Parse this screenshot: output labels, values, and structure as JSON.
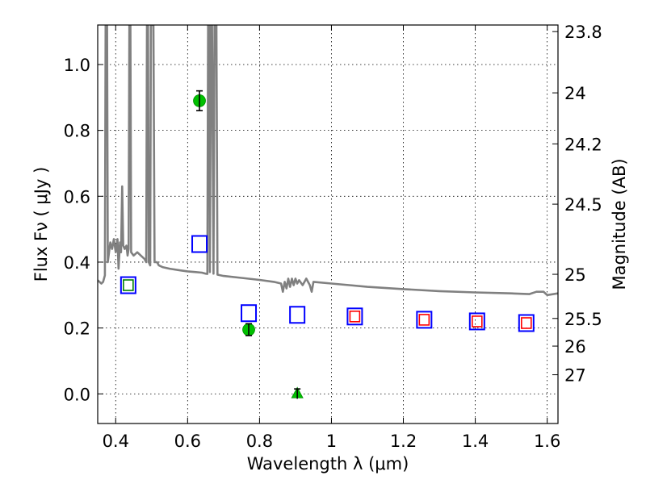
{
  "chart_data": {
    "type": "scatter",
    "xlabel": "Wavelength  λ (μm)",
    "ylabel": "Flux  Fν  ( μJy )",
    "ylabel_right": "Magnitude (AB)",
    "xlim": [
      0.35,
      1.63
    ],
    "ylim": [
      -0.09,
      1.12
    ],
    "grid": true,
    "x_ticks": [
      0.4,
      0.6,
      0.8,
      1.0,
      1.2,
      1.4,
      1.6
    ],
    "x_tick_labels": [
      "0.4",
      "0.6",
      "0.8",
      "1",
      "1.2",
      "1.4",
      "1.6"
    ],
    "y_ticks": [
      0.0,
      0.2,
      0.4,
      0.6,
      0.8,
      1.0
    ],
    "y_tick_labels": [
      "0.0",
      "0.2",
      "0.4",
      "0.6",
      "0.8",
      "1.0"
    ],
    "right_ticks": [
      {
        "label": "23.8",
        "flux": 1.1
      },
      {
        "label": "24",
        "flux": 0.914
      },
      {
        "label": "24.2",
        "flux": 0.759
      },
      {
        "label": "24.5",
        "flux": 0.576
      },
      {
        "label": "25",
        "flux": 0.363
      },
      {
        "label": "25.5",
        "flux": 0.229
      },
      {
        "label": "26",
        "flux": 0.145
      },
      {
        "label": "27",
        "flux": 0.058
      }
    ],
    "series": [
      {
        "role": "model-sed",
        "style": "line",
        "color": "#808080",
        "points": [
          [
            0.35,
            0.345
          ],
          [
            0.36,
            0.335
          ],
          [
            0.365,
            0.34
          ],
          [
            0.37,
            0.36
          ],
          [
            0.372,
            1.12
          ],
          [
            0.376,
            1.12
          ],
          [
            0.378,
            0.4
          ],
          [
            0.385,
            0.46
          ],
          [
            0.39,
            0.44
          ],
          [
            0.395,
            0.47
          ],
          [
            0.4,
            0.43
          ],
          [
            0.405,
            0.47
          ],
          [
            0.408,
            0.38
          ],
          [
            0.412,
            0.46
          ],
          [
            0.415,
            0.43
          ],
          [
            0.418,
            0.63
          ],
          [
            0.421,
            0.45
          ],
          [
            0.425,
            0.44
          ],
          [
            0.43,
            0.45
          ],
          [
            0.433,
            0.42
          ],
          [
            0.436,
            0.44
          ],
          [
            0.438,
            1.12
          ],
          [
            0.441,
            1.12
          ],
          [
            0.443,
            0.43
          ],
          [
            0.45,
            0.42
          ],
          [
            0.46,
            0.43
          ],
          [
            0.47,
            0.42
          ],
          [
            0.48,
            0.41
          ],
          [
            0.485,
            0.4
          ],
          [
            0.487,
            1.12
          ],
          [
            0.49,
            1.12
          ],
          [
            0.492,
            0.4
          ],
          [
            0.496,
            0.39
          ],
          [
            0.498,
            1.12
          ],
          [
            0.505,
            1.12
          ],
          [
            0.508,
            0.4
          ],
          [
            0.515,
            0.4
          ],
          [
            0.52,
            0.39
          ],
          [
            0.53,
            0.385
          ],
          [
            0.55,
            0.38
          ],
          [
            0.58,
            0.375
          ],
          [
            0.6,
            0.372
          ],
          [
            0.62,
            0.37
          ],
          [
            0.64,
            0.368
          ],
          [
            0.65,
            0.365
          ],
          [
            0.655,
            0.364
          ],
          [
            0.657,
            1.12
          ],
          [
            0.66,
            1.12
          ],
          [
            0.662,
            0.37
          ],
          [
            0.665,
            1.12
          ],
          [
            0.668,
            1.12
          ],
          [
            0.672,
            0.365
          ],
          [
            0.675,
            1.12
          ],
          [
            0.68,
            1.12
          ],
          [
            0.683,
            0.362
          ],
          [
            0.7,
            0.358
          ],
          [
            0.75,
            0.352
          ],
          [
            0.8,
            0.346
          ],
          [
            0.84,
            0.34
          ],
          [
            0.86,
            0.335
          ],
          [
            0.865,
            0.31
          ],
          [
            0.87,
            0.34
          ],
          [
            0.875,
            0.32
          ],
          [
            0.88,
            0.35
          ],
          [
            0.885,
            0.325
          ],
          [
            0.89,
            0.35
          ],
          [
            0.895,
            0.33
          ],
          [
            0.9,
            0.35
          ],
          [
            0.905,
            0.335
          ],
          [
            0.91,
            0.345
          ],
          [
            0.92,
            0.33
          ],
          [
            0.93,
            0.35
          ],
          [
            0.94,
            0.33
          ],
          [
            0.945,
            0.31
          ],
          [
            0.95,
            0.34
          ],
          [
            1.0,
            0.335
          ],
          [
            1.05,
            0.33
          ],
          [
            1.1,
            0.325
          ],
          [
            1.2,
            0.318
          ],
          [
            1.3,
            0.312
          ],
          [
            1.4,
            0.308
          ],
          [
            1.5,
            0.305
          ],
          [
            1.55,
            0.303
          ],
          [
            1.57,
            0.31
          ],
          [
            1.59,
            0.31
          ],
          [
            1.6,
            0.3
          ],
          [
            1.63,
            0.305
          ]
        ]
      },
      {
        "role": "model-photometry",
        "style": "open-square",
        "color": "#0000ff",
        "points": [
          [
            0.435,
            0.33
          ],
          [
            0.633,
            0.455
          ],
          [
            0.77,
            0.245
          ],
          [
            0.905,
            0.24
          ],
          [
            1.065,
            0.235
          ],
          [
            1.258,
            0.225
          ],
          [
            1.405,
            0.22
          ],
          [
            1.542,
            0.215
          ]
        ]
      },
      {
        "role": "observed-photometry-inner",
        "style": "open-square-small",
        "color": "#ff0000",
        "points": [
          [
            1.065,
            0.235
          ],
          [
            1.258,
            0.225
          ],
          [
            1.405,
            0.22
          ],
          [
            1.542,
            0.215
          ]
        ]
      },
      {
        "role": "observed-photometry-inner",
        "style": "open-square-small",
        "color": "#008000",
        "points": [
          [
            0.435,
            0.33
          ]
        ]
      },
      {
        "role": "detections",
        "style": "circle-errorbar",
        "color": "#00c000",
        "points": [
          [
            0.633,
            0.89,
            0.03
          ],
          [
            0.77,
            0.195,
            0.018
          ]
        ]
      },
      {
        "role": "upper-limit",
        "style": "triangle-errorbar",
        "color": "#00c000",
        "points": [
          [
            0.905,
            0.0,
            0.015
          ]
        ]
      }
    ]
  }
}
